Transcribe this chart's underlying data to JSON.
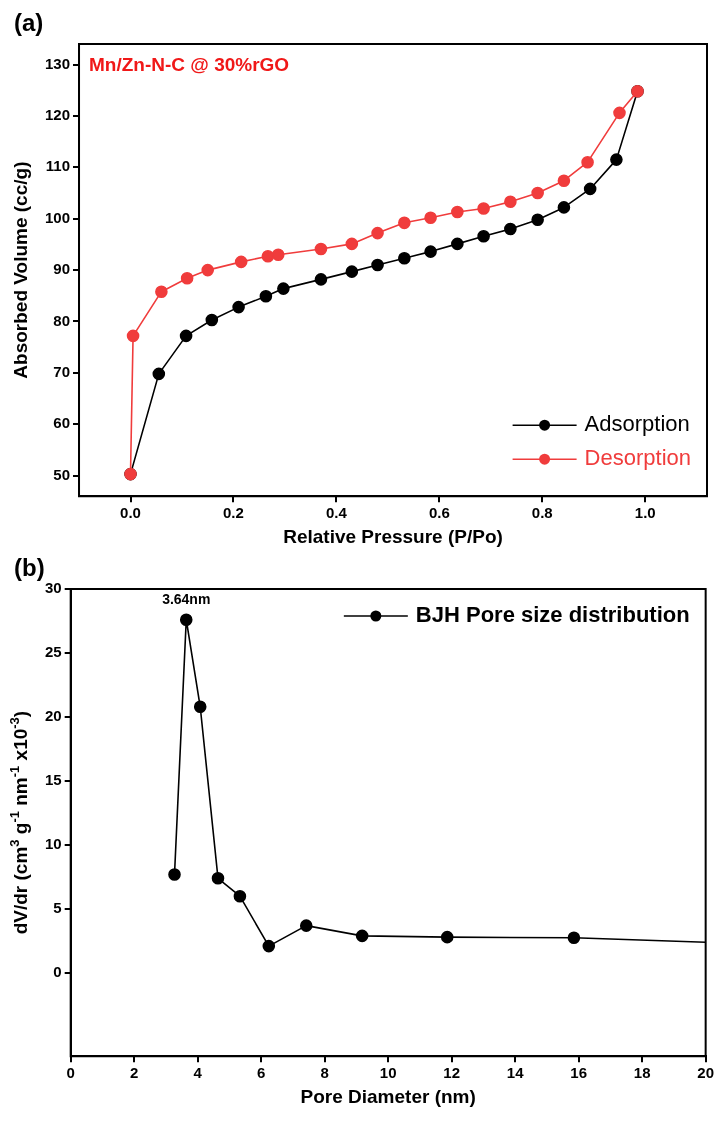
{
  "chart_data": [
    {
      "type": "line",
      "title": "(a)",
      "xlabel": "Relative Pressure (P/Po)",
      "ylabel": "Absorbed Volume (cc/g)",
      "annotations": [
        "Mn/Zn-N-C @ 30%rGO"
      ],
      "xlim": [
        -0.1,
        1.12
      ],
      "ylim": [
        46,
        134
      ],
      "xticks": [
        {
          "value": 0,
          "label": "0.0"
        },
        0.2,
        0.4,
        0.6,
        0.8,
        {
          "value": 1,
          "label": "1.0"
        }
      ],
      "yticks": [
        50,
        60,
        70,
        80,
        90,
        100,
        110,
        120,
        130
      ],
      "legend": "bottom right",
      "marker": "circle",
      "series": [
        {
          "name": "Adsorption",
          "color": "#000000",
          "x": [
            0.0,
            0.055,
            0.108,
            0.158,
            0.21,
            0.263,
            0.297,
            0.37,
            0.43,
            0.48,
            0.532,
            0.583,
            0.635,
            0.686,
            0.738,
            0.791,
            0.842,
            0.893,
            0.944,
            0.985
          ],
          "values": [
            50.3,
            69.8,
            77.2,
            80.3,
            82.8,
            84.9,
            86.4,
            88.2,
            89.7,
            91,
            92.3,
            93.6,
            95.1,
            96.6,
            98,
            99.8,
            102.2,
            105.8,
            111.5,
            124.8
          ]
        },
        {
          "name": "Desorption",
          "color": "#f03c3c",
          "x": [
            0.0,
            0.005,
            0.06,
            0.11,
            0.15,
            0.215,
            0.267,
            0.287,
            0.37,
            0.43,
            0.48,
            0.532,
            0.583,
            0.635,
            0.686,
            0.738,
            0.791,
            0.842,
            0.888,
            0.95,
            0.985
          ],
          "values": [
            50.3,
            77.2,
            85.8,
            88.4,
            90,
            91.6,
            92.7,
            93,
            94.1,
            95.1,
            97.2,
            99.2,
            100.2,
            101.3,
            102,
            103.3,
            105,
            107.4,
            111,
            120.6,
            124.8
          ]
        }
      ]
    },
    {
      "type": "line",
      "title": "(b)",
      "xlabel": "Pore Diameter (nm)",
      "ylabel": "dV/dr (cm$^{3}$ g$^{-1}$ nm$^{-1}$ x10$^{-3}$)",
      "annotations": [
        {
          "text": "3.64nm",
          "x": 3.64,
          "y": 27.6
        }
      ],
      "xlim": [
        0,
        20
      ],
      "ylim": [
        -6.5,
        30
      ],
      "xticks": [
        0,
        2,
        4,
        6,
        8,
        10,
        12,
        14,
        16,
        18,
        20
      ],
      "yticks": [
        0,
        5,
        10,
        15,
        20,
        25,
        30
      ],
      "legend": "top right",
      "marker": "circle",
      "series": [
        {
          "name": "BJH Pore size distribution",
          "color": "#000000",
          "x": [
            3.27,
            3.64,
            4.08,
            4.64,
            5.33,
            6.24,
            7.42,
            9.18,
            11.86,
            15.85,
            20
          ],
          "values": [
            7.7,
            27.6,
            20.8,
            7.4,
            6.0,
            2.1,
            3.7,
            2.9,
            2.8,
            2.75,
            2.4
          ]
        }
      ]
    }
  ]
}
